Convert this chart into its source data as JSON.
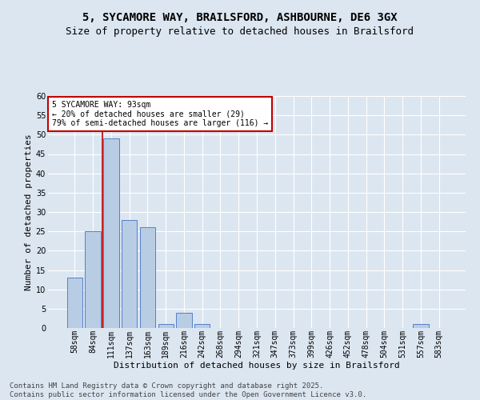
{
  "title_line1": "5, SYCAMORE WAY, BRAILSFORD, ASHBOURNE, DE6 3GX",
  "title_line2": "Size of property relative to detached houses in Brailsford",
  "xlabel": "Distribution of detached houses by size in Brailsford",
  "ylabel": "Number of detached properties",
  "categories": [
    "58sqm",
    "84sqm",
    "111sqm",
    "137sqm",
    "163sqm",
    "189sqm",
    "216sqm",
    "242sqm",
    "268sqm",
    "294sqm",
    "321sqm",
    "347sqm",
    "373sqm",
    "399sqm",
    "426sqm",
    "452sqm",
    "478sqm",
    "504sqm",
    "531sqm",
    "557sqm",
    "583sqm"
  ],
  "values": [
    13,
    25,
    49,
    28,
    26,
    1,
    4,
    1,
    0,
    0,
    0,
    0,
    0,
    0,
    0,
    0,
    0,
    0,
    0,
    1,
    0
  ],
  "bar_color": "#b8cce4",
  "bar_edge_color": "#4472c4",
  "marker_color": "#c00000",
  "annotation_text": "5 SYCAMORE WAY: 93sqm\n← 20% of detached houses are smaller (29)\n79% of semi-detached houses are larger (116) →",
  "annotation_box_color": "#ffffff",
  "annotation_box_edge": "#c00000",
  "ylim": [
    0,
    60
  ],
  "yticks": [
    0,
    5,
    10,
    15,
    20,
    25,
    30,
    35,
    40,
    45,
    50,
    55,
    60
  ],
  "footer": "Contains HM Land Registry data © Crown copyright and database right 2025.\nContains public sector information licensed under the Open Government Licence v3.0.",
  "bg_color": "#dce6f1",
  "plot_bg_color": "#dce6f1",
  "grid_color": "#ffffff",
  "title_fontsize": 10,
  "subtitle_fontsize": 9,
  "axis_label_fontsize": 8,
  "tick_fontsize": 7,
  "annotation_fontsize": 7,
  "footer_fontsize": 6.5
}
